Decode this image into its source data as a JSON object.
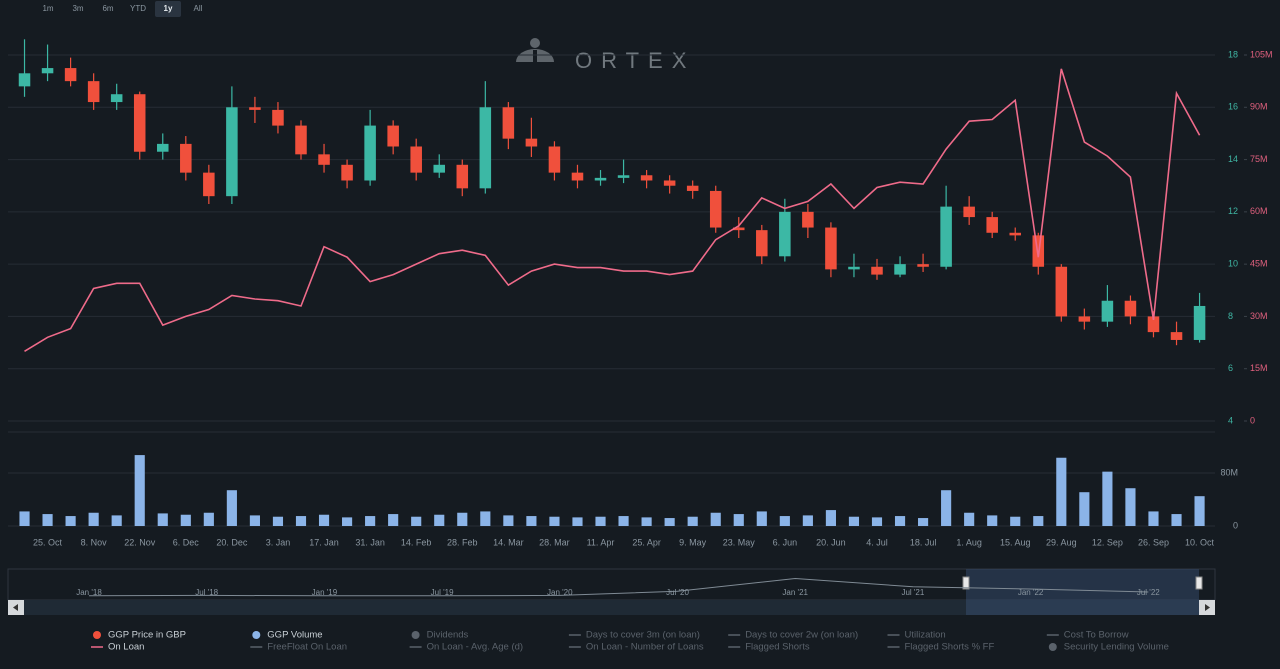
{
  "chart_data": {
    "type": "candlestick",
    "range_buttons": [
      "1m",
      "3m",
      "6m",
      "YTD",
      "1y",
      "All"
    ],
    "selected_range": "1y",
    "watermark": "ORTEX",
    "categories": [
      null,
      "25. Oct",
      null,
      "8. Nov",
      null,
      "22. Nov",
      null,
      "6. Dec",
      null,
      "20. Dec",
      null,
      "3. Jan",
      null,
      "17. Jan",
      null,
      "31. Jan",
      null,
      "14. Feb",
      null,
      "28. Feb",
      null,
      "14. Mar",
      null,
      "28. Mar",
      null,
      "11. Apr",
      null,
      "25. Apr",
      null,
      "9. May",
      null,
      "23. May",
      null,
      "6. Jun",
      null,
      "20. Jun",
      null,
      "4. Jul",
      null,
      "18. Jul",
      null,
      "1. Aug",
      null,
      "15. Aug",
      null,
      "29. Aug",
      null,
      "12. Sep",
      null,
      "26. Sep",
      null,
      "10. Oct"
    ],
    "series": [
      {
        "name": "GGP Price in GBP",
        "color": "#f0503c",
        "up_color": "#3cb8a5",
        "down_color": "#f0503c",
        "legend_marker": "dot",
        "open": [
          16.8,
          17.3,
          17.5,
          17.0,
          16.2,
          16.5,
          14.3,
          14.6,
          13.5,
          12.6,
          16.0,
          15.9,
          15.3,
          14.2,
          13.8,
          13.2,
          15.3,
          14.5,
          13.5,
          13.8,
          12.9,
          16.0,
          14.8,
          14.5,
          13.5,
          13.2,
          13.3,
          13.4,
          13.2,
          13.0,
          12.8,
          11.4,
          11.3,
          10.3,
          12.0,
          11.4,
          9.8,
          9.9,
          9.6,
          10.0,
          9.9,
          12.2,
          11.8,
          11.2,
          11.1,
          9.9,
          8.0,
          7.8,
          8.6,
          8.0,
          7.4,
          7.1
        ],
        "high": [
          18.6,
          18.4,
          17.9,
          17.3,
          16.9,
          16.6,
          15.0,
          14.9,
          13.8,
          16.8,
          16.4,
          16.2,
          15.5,
          14.6,
          14.0,
          15.9,
          15.5,
          14.8,
          14.2,
          14.0,
          17.0,
          16.2,
          15.6,
          14.7,
          13.8,
          13.6,
          14.0,
          13.6,
          13.4,
          13.2,
          13.0,
          11.8,
          11.5,
          12.5,
          12.3,
          11.6,
          10.4,
          10.2,
          10.3,
          10.4,
          13.0,
          12.6,
          12.0,
          11.4,
          11.2,
          10.0,
          8.3,
          9.2,
          8.8,
          8.2,
          7.8,
          8.9
        ],
        "low": [
          16.4,
          17.0,
          16.8,
          15.9,
          15.9,
          14.0,
          14.0,
          13.2,
          12.3,
          12.3,
          15.4,
          15.0,
          14.0,
          13.5,
          12.9,
          13.0,
          14.2,
          13.2,
          13.3,
          12.6,
          12.7,
          14.4,
          14.1,
          13.2,
          12.9,
          13.0,
          13.1,
          12.9,
          12.7,
          12.5,
          11.2,
          11.0,
          10.0,
          10.1,
          11.0,
          9.5,
          9.5,
          9.4,
          9.5,
          9.7,
          9.8,
          11.5,
          11.0,
          10.9,
          9.6,
          7.8,
          7.5,
          7.6,
          7.7,
          7.2,
          6.9,
          7.0
        ],
        "close": [
          17.3,
          17.5,
          17.0,
          16.2,
          16.5,
          14.3,
          14.6,
          13.5,
          12.6,
          16.0,
          15.9,
          15.3,
          14.2,
          13.8,
          13.2,
          15.3,
          14.5,
          13.5,
          13.8,
          12.9,
          16.0,
          14.8,
          14.5,
          13.5,
          13.2,
          13.3,
          13.4,
          13.2,
          13.0,
          12.8,
          11.4,
          11.3,
          10.3,
          12.0,
          11.4,
          9.8,
          9.9,
          9.6,
          10.0,
          9.9,
          12.2,
          11.8,
          11.2,
          11.1,
          9.9,
          8.0,
          7.8,
          8.6,
          8.0,
          7.4,
          7.1,
          8.4
        ]
      },
      {
        "name": "On Loan",
        "color": "#ef6b8a",
        "legend_marker": "line",
        "axis": "y2",
        "values": [
          20000000,
          24000000,
          26500000,
          38000000,
          39500000,
          39500000,
          27500000,
          30000000,
          32000000,
          36000000,
          35000000,
          34500000,
          33000000,
          50000000,
          47000000,
          40000000,
          42000000,
          45000000,
          48000000,
          49000000,
          47500000,
          39000000,
          43000000,
          45000000,
          44000000,
          44000000,
          43000000,
          43000000,
          42000000,
          43000000,
          52000000,
          56000000,
          64000000,
          61000000,
          63000000,
          68000000,
          61000000,
          67000000,
          68500000,
          68000000,
          78000000,
          86000000,
          86500000,
          92000000,
          47000000,
          101000000,
          80000000,
          76000000,
          70000000,
          29000000,
          94000000,
          82000000
        ]
      },
      {
        "name": "GGP Volume",
        "color": "#8bb4e8",
        "legend_marker": "dot",
        "axis": "volume",
        "values": [
          22000000,
          18000000,
          15000000,
          20000000,
          16000000,
          107000000,
          19000000,
          17000000,
          20000000,
          54000000,
          16000000,
          14000000,
          15000000,
          17000000,
          13000000,
          15000000,
          18000000,
          14000000,
          17000000,
          20000000,
          22000000,
          16000000,
          15000000,
          14000000,
          13000000,
          14000000,
          15000000,
          13000000,
          12000000,
          14000000,
          20000000,
          18000000,
          22000000,
          15000000,
          16000000,
          24000000,
          14000000,
          13000000,
          15000000,
          12000000,
          54000000,
          20000000,
          16000000,
          14000000,
          15000000,
          103000000,
          51000000,
          82000000,
          57000000,
          22000000,
          18000000,
          45000000
        ]
      }
    ],
    "ylim": [
      4,
      18
    ],
    "yticks": [
      4,
      6,
      8,
      10,
      12,
      14,
      16,
      18
    ],
    "y2lim": [
      0,
      105000000
    ],
    "y2ticks": [
      0,
      {
        "value": 15000000,
        "label": "15M"
      },
      {
        "value": 30000000,
        "label": "30M"
      },
      {
        "value": 45000000,
        "label": "45M"
      },
      {
        "value": 60000000,
        "label": "60M"
      },
      {
        "value": 75000000,
        "label": "75M"
      },
      {
        "value": 90000000,
        "label": "90M"
      },
      {
        "value": 105000000,
        "label": "105M"
      }
    ],
    "volume_ylim": [
      0,
      110000000
    ],
    "volume_ticks": [
      0,
      {
        "value": 80000000,
        "label": "80M"
      }
    ],
    "grid": true,
    "hidden_color": "#5a626b",
    "hidden_series": [
      {
        "name": "FreeFloat On Loan",
        "legend_marker": "line"
      },
      {
        "name": "Dividends",
        "legend_marker": "dot"
      },
      {
        "name": "On Loan - Avg. Age (d)",
        "legend_marker": "line"
      },
      {
        "name": "Days to cover 3m (on loan)",
        "legend_marker": "line"
      },
      {
        "name": "On Loan - Number of Loans",
        "legend_marker": "line"
      },
      {
        "name": "Days to cover 2w (on loan)",
        "legend_marker": "line"
      },
      {
        "name": "Flagged Shorts",
        "legend_marker": "line"
      },
      {
        "name": "Utilization",
        "legend_marker": "line"
      },
      {
        "name": "Flagged Shorts % FF",
        "legend_marker": "line"
      },
      {
        "name": "Cost To Borrow",
        "legend_marker": "line"
      },
      {
        "name": "Security Lending Volume",
        "legend_marker": "dot"
      }
    ],
    "navigator": {
      "categories": [
        "Jan '18",
        "Jul '18",
        "Jan '19",
        "Jul '19",
        "Jan '20",
        "Jul '20",
        "Jan '21",
        "Jul '21",
        "Jan '22",
        "Jul '22"
      ],
      "values": [
        3,
        3.5,
        3,
        3,
        3.5,
        9,
        26,
        15,
        12,
        8
      ],
      "ylim": [
        0,
        40
      ]
    }
  }
}
